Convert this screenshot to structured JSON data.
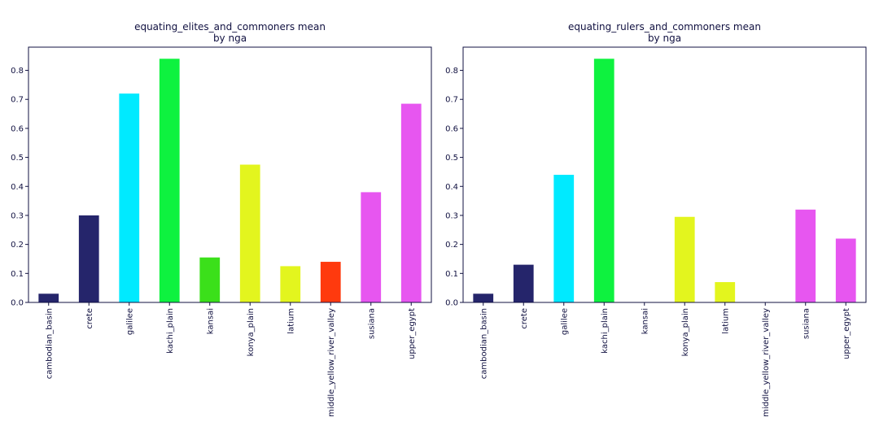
{
  "chart_data": [
    {
      "type": "bar",
      "title": "equating_elites_and_commoners mean",
      "subtitle": "by nga",
      "xlabel": "",
      "ylabel": "",
      "ylim": [
        0,
        0.88
      ],
      "yticks": [
        "0.0",
        "0.1",
        "0.2",
        "0.3",
        "0.4",
        "0.5",
        "0.6",
        "0.7",
        "0.8"
      ],
      "grid": false,
      "categories": [
        "cambodian_basin",
        "crete",
        "galilee",
        "kachi_plain",
        "kansai",
        "konya_plain",
        "latium",
        "middle_yellow_river_valley",
        "susiana",
        "upper_egypt"
      ],
      "values": [
        0.03,
        0.3,
        0.72,
        0.84,
        0.155,
        0.475,
        0.125,
        0.14,
        0.38,
        0.685
      ],
      "colors": [
        "#25256b",
        "#25256b",
        "#00eaff",
        "#0ef23f",
        "#3be01a",
        "#e3f51e",
        "#e3f51e",
        "#ff3a0e",
        "#e756f0",
        "#e756f0"
      ]
    },
    {
      "type": "bar",
      "title": "equating_rulers_and_commoners mean",
      "subtitle": "by nga",
      "xlabel": "",
      "ylabel": "",
      "ylim": [
        0,
        0.88
      ],
      "yticks": [
        "0.0",
        "0.1",
        "0.2",
        "0.3",
        "0.4",
        "0.5",
        "0.6",
        "0.7",
        "0.8"
      ],
      "grid": false,
      "categories": [
        "cambodian_basin",
        "crete",
        "galilee",
        "kachi_plain",
        "kansai",
        "konya_plain",
        "latium",
        "middle_yellow_river_valley",
        "susiana",
        "upper_egypt"
      ],
      "values": [
        0.03,
        0.13,
        0.44,
        0.84,
        0.0,
        0.295,
        0.07,
        0.0,
        0.32,
        0.22
      ],
      "colors": [
        "#25256b",
        "#25256b",
        "#00eaff",
        "#0ef23f",
        "#3be01a",
        "#e3f51e",
        "#e3f51e",
        "#ff3a0e",
        "#e756f0",
        "#e756f0"
      ]
    }
  ]
}
